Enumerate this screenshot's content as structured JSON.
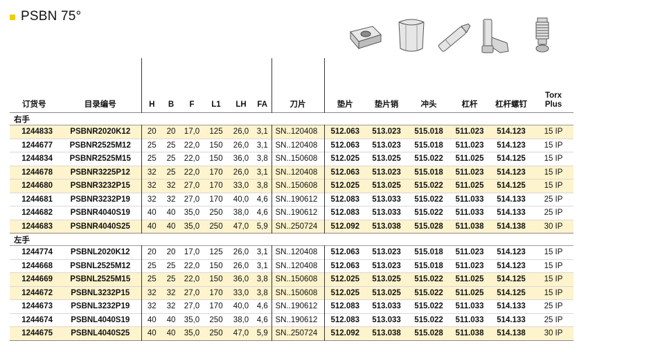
{
  "title": "PSBN 75°",
  "header": {
    "order_no": "订货号",
    "catalog_no": "目录编号",
    "h": "H",
    "b": "B",
    "f": "F",
    "l1": "L1",
    "lh": "LH",
    "fa": "FA",
    "insert": "刀片",
    "shim": "垫片",
    "shim_pin": "垫片销",
    "punch": "冲头",
    "lever": "杠杆",
    "lever_screw": "杠杆螺钉",
    "torx_line1": "Torx",
    "torx_line2": "Plus"
  },
  "groups": [
    {
      "label": "右手",
      "rows": [
        [
          "1244833",
          "PSBNR2020K12",
          "20",
          "20",
          "17,0",
          "125",
          "26,0",
          "3,1",
          "SN..120408",
          "512.063",
          "513.023",
          "515.018",
          "511.023",
          "514.123",
          "15 IP"
        ],
        [
          "1244677",
          "PSBNR2525M12",
          "25",
          "25",
          "22,0",
          "150",
          "26,0",
          "3,1",
          "SN..120408",
          "512.063",
          "513.023",
          "515.018",
          "511.023",
          "514.123",
          "15 IP"
        ],
        [
          "1244834",
          "PSBNR2525M15",
          "25",
          "25",
          "22,0",
          "150",
          "36,0",
          "3,8",
          "SN..150608",
          "512.025",
          "513.025",
          "515.022",
          "511.025",
          "514.125",
          "15 IP"
        ],
        [
          "1244678",
          "PSBNR3225P12",
          "32",
          "25",
          "22,0",
          "170",
          "26,0",
          "3,1",
          "SN..120408",
          "512.063",
          "513.023",
          "515.018",
          "511.023",
          "514.123",
          "15 IP"
        ],
        [
          "1244680",
          "PSBNR3232P15",
          "32",
          "32",
          "27,0",
          "170",
          "33,0",
          "3,8",
          "SN..150608",
          "512.025",
          "513.025",
          "515.022",
          "511.025",
          "514.125",
          "15 IP"
        ],
        [
          "1244681",
          "PSBNR3232P19",
          "32",
          "32",
          "27,0",
          "170",
          "40,0",
          "4,6",
          "SN..190612",
          "512.083",
          "513.033",
          "515.022",
          "511.033",
          "514.133",
          "25 IP"
        ],
        [
          "1244682",
          "PSBNR4040S19",
          "40",
          "40",
          "35,0",
          "250",
          "38,0",
          "4,6",
          "SN..190612",
          "512.083",
          "513.033",
          "515.022",
          "511.033",
          "514.133",
          "25 IP"
        ],
        [
          "1244683",
          "PSBNR4040S25",
          "40",
          "40",
          "35,0",
          "250",
          "47,0",
          "5,9",
          "SN..250724",
          "512.092",
          "513.038",
          "515.028",
          "511.038",
          "514.138",
          "30 IP"
        ]
      ]
    },
    {
      "label": "左手",
      "rows": [
        [
          "1244774",
          "PSBNL2020K12",
          "20",
          "20",
          "17,0",
          "125",
          "26,0",
          "3,1",
          "SN..120408",
          "512.063",
          "513.023",
          "515.018",
          "511.023",
          "514.123",
          "15 IP"
        ],
        [
          "1244668",
          "PSBNL2525M12",
          "25",
          "25",
          "22,0",
          "150",
          "26,0",
          "3,1",
          "SN..120408",
          "512.063",
          "513.023",
          "515.018",
          "511.023",
          "514.123",
          "15 IP"
        ],
        [
          "1244669",
          "PSBNL2525M15",
          "25",
          "25",
          "22,0",
          "150",
          "36,0",
          "3,8",
          "SN..150608",
          "512.025",
          "513.025",
          "515.022",
          "511.025",
          "514.125",
          "15 IP"
        ],
        [
          "1244672",
          "PSBNL3232P15",
          "32",
          "32",
          "27,0",
          "170",
          "33,0",
          "3,8",
          "SN..150608",
          "512.025",
          "513.025",
          "515.022",
          "511.025",
          "514.125",
          "15 IP"
        ],
        [
          "1244673",
          "PSBNL3232P19",
          "32",
          "32",
          "27,0",
          "170",
          "40,0",
          "4,6",
          "SN..190612",
          "512.083",
          "513.033",
          "515.022",
          "511.033",
          "514.133",
          "25 IP"
        ],
        [
          "1244674",
          "PSBNL4040S19",
          "40",
          "40",
          "35,0",
          "250",
          "38,0",
          "4,6",
          "SN..190612",
          "512.083",
          "513.033",
          "515.022",
          "511.033",
          "514.133",
          "25 IP"
        ],
        [
          "1244675",
          "PSBNL4040S25",
          "40",
          "40",
          "35,0",
          "250",
          "47,0",
          "5,9",
          "SN..250724",
          "512.092",
          "513.038",
          "515.028",
          "511.038",
          "514.138",
          "30 IP"
        ]
      ]
    }
  ],
  "highlight_rows": {
    "0": [
      0,
      3,
      4,
      7
    ],
    "1": [
      2,
      3,
      6
    ]
  },
  "icons": [
    "shim-icon",
    "shim-pin-icon",
    "punch-icon",
    "lever-icon",
    "lever-screw-icon"
  ],
  "colors": {
    "accent": "#f2cd00",
    "highlight": "#fdf3cd"
  }
}
